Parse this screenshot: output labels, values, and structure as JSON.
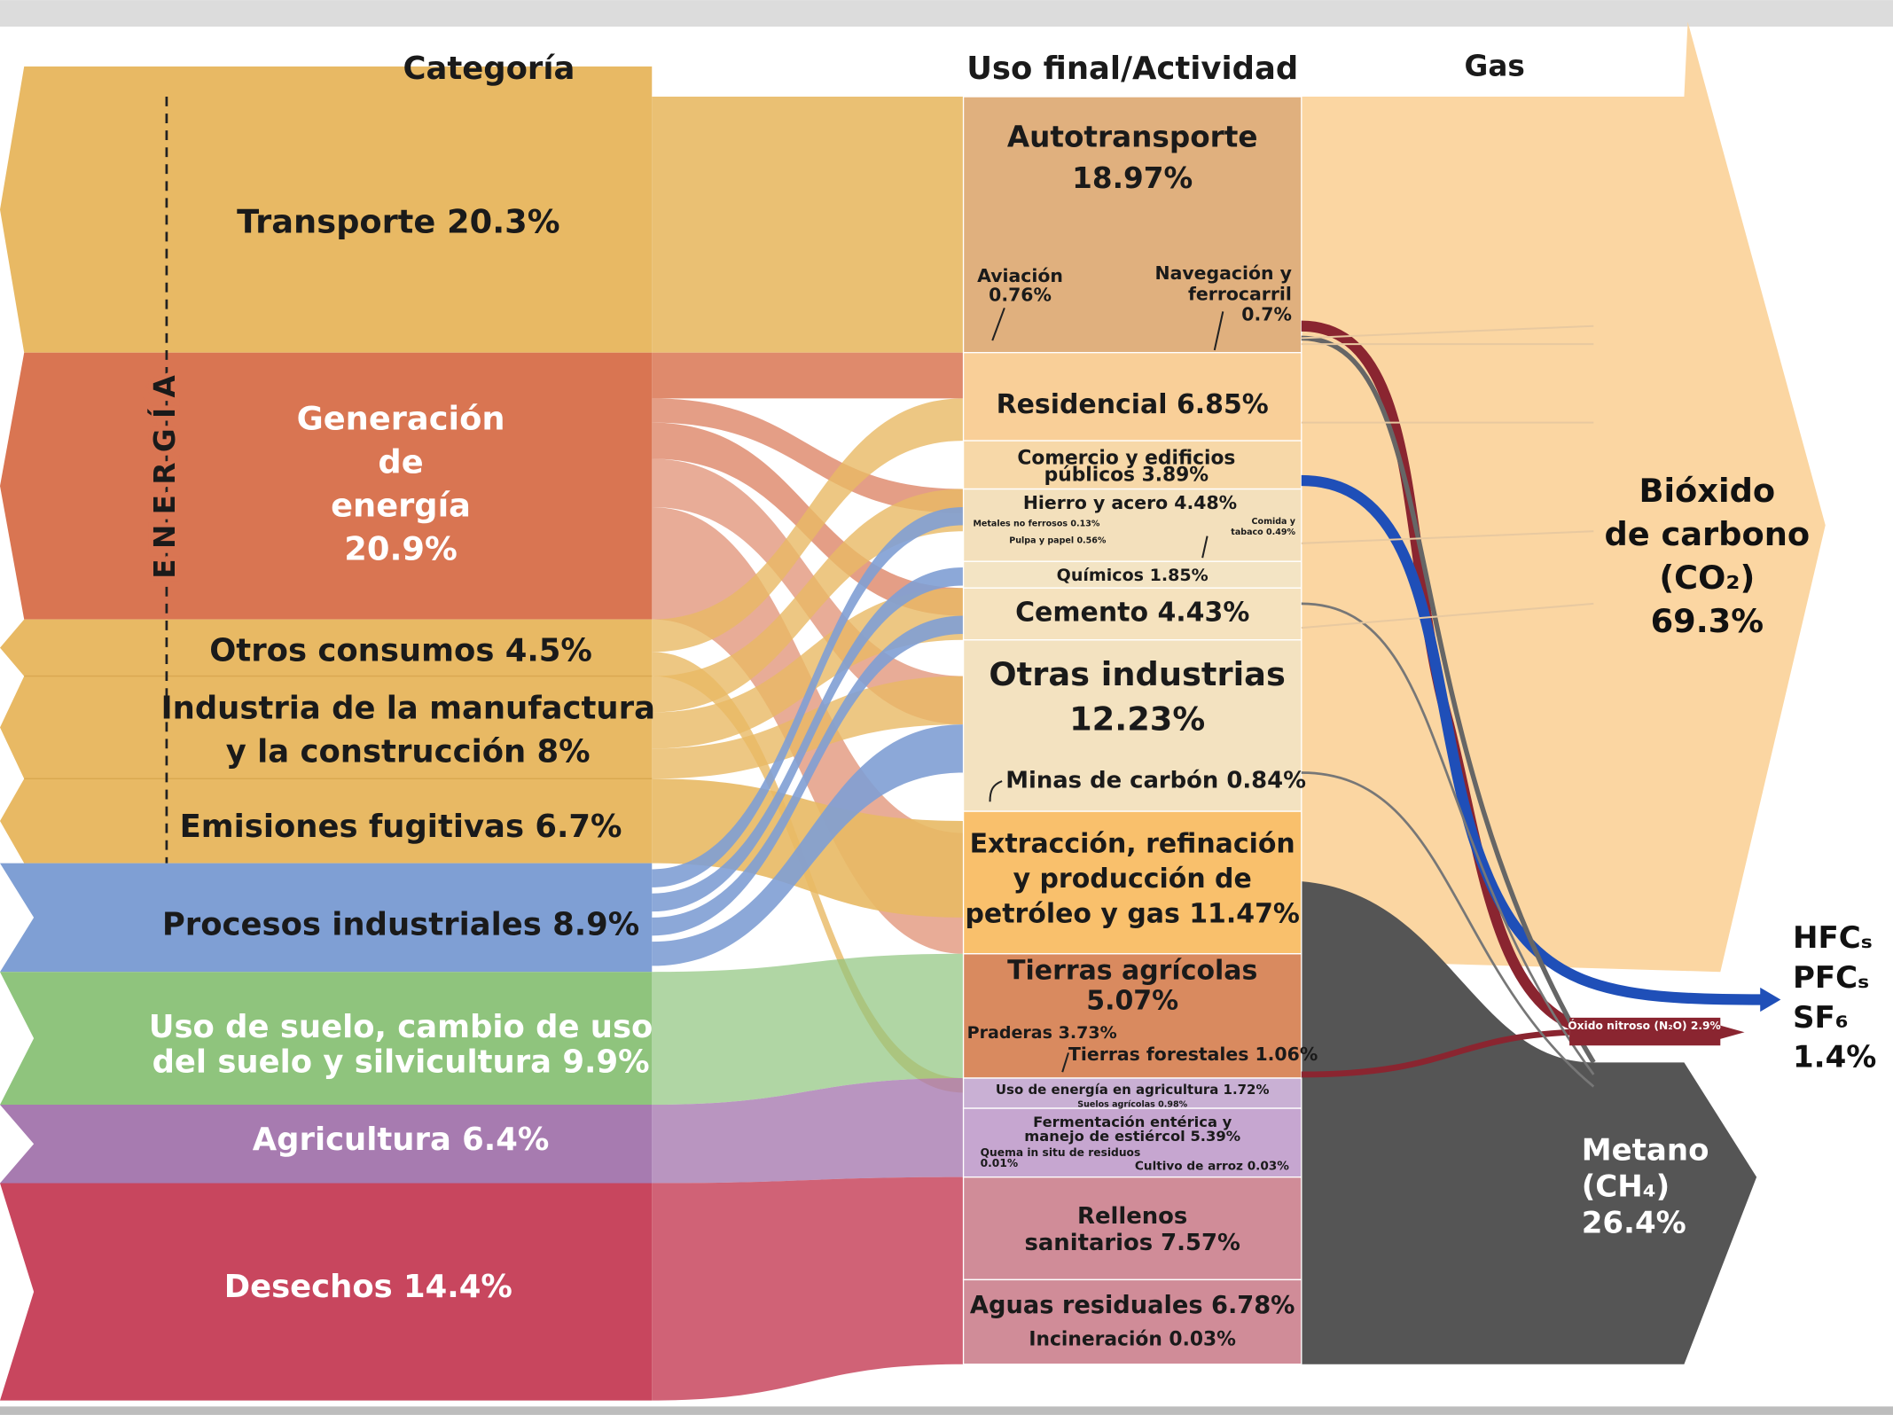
{
  "headers": [
    "Categoría",
    "Uso final/Actividad",
    "Gas"
  ],
  "energy_label": "E N E R G Í A",
  "categories": [
    [
      "Transporte 20.3%"
    ],
    [
      "Generación",
      "de",
      "energía",
      "20.9%"
    ],
    [
      "Otros consumos 4.5%"
    ],
    [
      "Industria de la manufactura",
      "y la construcción 8%"
    ],
    [
      "Emisiones fugitivas 6.7%"
    ],
    [
      "Procesos industriales 8.9%"
    ],
    [
      "Uso de suelo, cambio de uso",
      "del suelo y silvicultura 9.9%"
    ],
    [
      "Agricultura 6.4%"
    ],
    [
      "Desechos 14.4%"
    ]
  ],
  "activities": [
    [
      "Autotransporte",
      "18.97%"
    ],
    [
      "Aviación",
      "0.76%"
    ],
    [
      "Navegación y",
      "ferrocarril",
      "0.7%"
    ],
    [
      "Residencial 6.85%"
    ],
    [
      "Comercio y edificios",
      "públicos 3.89%"
    ],
    [
      "Hierro y acero 4.48%"
    ],
    [
      "Metales no ferrosos 0.13%"
    ],
    [
      "Pulpa y papel 0.56%"
    ],
    [
      "Comida y",
      "tabaco 0.49%"
    ],
    [
      "Químicos 1.85%"
    ],
    [
      "Cemento 4.43%"
    ],
    [
      "Otras industrias",
      "12.23%"
    ],
    [
      "Minas de carbón 0.84%"
    ],
    [
      "Extracción, refinación",
      "y producción de",
      "petróleo y gas 11.47%"
    ],
    [
      "Tierras agrícolas",
      "5.07%"
    ],
    [
      "Praderas 3.73%"
    ],
    [
      "Tierras forestales 1.06%"
    ],
    [
      "Uso de energía en agricultura 1.72%"
    ],
    [
      "Suelos agrícolas 0.98%"
    ],
    [
      "Fermentación entérica y",
      "manejo de estiércol 5.39%"
    ],
    [
      "Quema in situ de residuos",
      "0.01%"
    ],
    [
      "Cultivo de arroz 0.03%"
    ],
    [
      "Rellenos",
      "sanitarios 7.57%"
    ],
    [
      "Aguas residuales 6.78%"
    ],
    [
      "Incineración 0.03%"
    ]
  ],
  "gases": [
    [
      "Bióxido",
      "de carbono",
      "(CO₂)",
      "69.3%"
    ],
    [
      "Óxido nitroso (N₂O) 2.9%"
    ],
    [
      "HFCₛ",
      "PFCₛ",
      "SF₆",
      "1.4%"
    ],
    [
      "Metano",
      "(CH₄)",
      "26.4%"
    ]
  ]
}
